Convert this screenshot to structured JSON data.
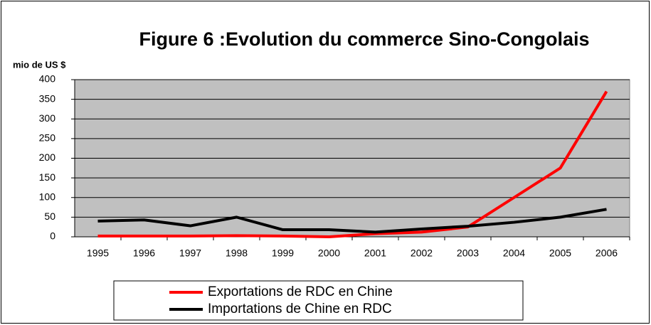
{
  "chart_data": {
    "type": "line",
    "title": "Figure 6 :Evolution du commerce Sino-Congolais",
    "y_label": "mio de US $",
    "categories": [
      "1995",
      "1996",
      "1997",
      "1998",
      "1999",
      "2000",
      "2001",
      "2002",
      "2003",
      "2004",
      "2005",
      "2006"
    ],
    "series": [
      {
        "name": "Exportations de RDC en Chine",
        "color": "#ff0000",
        "values": [
          2,
          2,
          2,
          3,
          2,
          0,
          8,
          12,
          25,
          100,
          175,
          370
        ]
      },
      {
        "name": "Importations de Chine en RDC",
        "color": "#000000",
        "values": [
          40,
          43,
          28,
          50,
          18,
          18,
          12,
          20,
          27,
          37,
          50,
          70
        ]
      }
    ],
    "ylim": [
      0,
      400
    ],
    "yticks": [
      0,
      50,
      100,
      150,
      200,
      250,
      300,
      350,
      400
    ],
    "grid": true,
    "legend": "bottom"
  }
}
